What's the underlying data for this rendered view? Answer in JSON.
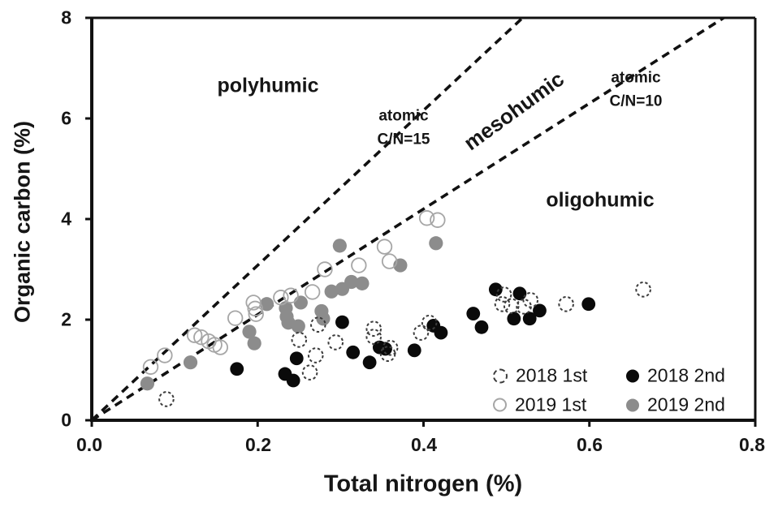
{
  "figure": {
    "background": "#ffffff",
    "text_color": "#161616"
  },
  "annotations": {
    "polyhumic": "polyhumic",
    "mesohumic": "mesohumic",
    "oligohumic": "oligohumic",
    "cn15": "atomic\nC/N=15",
    "cn10": "atomic\nC/N=10"
  },
  "legend": {
    "items": [
      {
        "label": "2018 1st",
        "marker": "open-dashed"
      },
      {
        "label": "2018 2nd",
        "marker": "filled-black"
      },
      {
        "label": "2019 1st",
        "marker": "open-gray"
      },
      {
        "label": "2019 2nd",
        "marker": "filled-gray"
      }
    ]
  },
  "chart_data": {
    "type": "scatter",
    "title": "",
    "xlabel": "Total nitrogen (%)",
    "ylabel": "Organic carbon (%)",
    "xlim": [
      0.0,
      0.8
    ],
    "ylim": [
      0,
      8
    ],
    "x_ticks": [
      0.0,
      0.2,
      0.4,
      0.6,
      0.8
    ],
    "y_ticks": [
      0,
      2,
      4,
      6,
      8
    ],
    "x_tick_labels": [
      "0.0",
      "0.2",
      "0.4",
      "0.6",
      "0.8"
    ],
    "y_tick_labels": [
      "0",
      "2",
      "4",
      "6",
      "8"
    ],
    "grid": false,
    "legend_position": "inside lower right",
    "reference_lines": [
      {
        "name": "atomic C/N=15",
        "slope": 15.4,
        "intercept": 0,
        "style": "dashed",
        "color": "#111111"
      },
      {
        "name": "atomic C/N=10",
        "slope": 10.5,
        "intercept": 0,
        "style": "dashed",
        "color": "#111111"
      }
    ],
    "series": [
      {
        "name": "2019 2nd",
        "marker": "filled-gray",
        "color": "#8c8c8c",
        "points": [
          [
            0.067,
            0.73
          ],
          [
            0.119,
            1.15
          ],
          [
            0.19,
            1.76
          ],
          [
            0.196,
            1.53
          ],
          [
            0.211,
            2.31
          ],
          [
            0.234,
            2.23
          ],
          [
            0.235,
            2.06
          ],
          [
            0.237,
            1.94
          ],
          [
            0.249,
            1.87
          ],
          [
            0.252,
            2.34
          ],
          [
            0.277,
            2.17
          ],
          [
            0.279,
            2.02
          ],
          [
            0.289,
            2.56
          ],
          [
            0.302,
            2.61
          ],
          [
            0.313,
            2.75
          ],
          [
            0.326,
            2.72
          ],
          [
            0.299,
            3.47
          ],
          [
            0.372,
            3.08
          ],
          [
            0.415,
            3.52
          ]
        ]
      },
      {
        "name": "2018 2nd",
        "marker": "filled-black",
        "color": "#0a0a0a",
        "points": [
          [
            0.175,
            1.02
          ],
          [
            0.233,
            0.92
          ],
          [
            0.243,
            0.79
          ],
          [
            0.247,
            1.23
          ],
          [
            0.302,
            1.95
          ],
          [
            0.315,
            1.35
          ],
          [
            0.335,
            1.15
          ],
          [
            0.347,
            1.45
          ],
          [
            0.354,
            1.42
          ],
          [
            0.389,
            1.39
          ],
          [
            0.412,
            1.88
          ],
          [
            0.421,
            1.74
          ],
          [
            0.46,
            2.12
          ],
          [
            0.47,
            1.85
          ],
          [
            0.487,
            2.6
          ],
          [
            0.509,
            2.02
          ],
          [
            0.516,
            2.52
          ],
          [
            0.528,
            2.02
          ],
          [
            0.54,
            2.18
          ],
          [
            0.599,
            2.31
          ]
        ]
      },
      {
        "name": "2019 1st",
        "marker": "open-gray",
        "color": "#a6a6a6",
        "points": [
          [
            0.071,
            1.06
          ],
          [
            0.088,
            1.29
          ],
          [
            0.124,
            1.69
          ],
          [
            0.132,
            1.65
          ],
          [
            0.141,
            1.57
          ],
          [
            0.148,
            1.5
          ],
          [
            0.155,
            1.45
          ],
          [
            0.173,
            2.03
          ],
          [
            0.195,
            2.34
          ],
          [
            0.197,
            2.22
          ],
          [
            0.198,
            2.11
          ],
          [
            0.228,
            2.44
          ],
          [
            0.24,
            2.48
          ],
          [
            0.266,
            2.55
          ],
          [
            0.281,
            3.0
          ],
          [
            0.322,
            3.08
          ],
          [
            0.353,
            3.45
          ],
          [
            0.359,
            3.16
          ],
          [
            0.404,
            4.02
          ],
          [
            0.417,
            3.98
          ]
        ]
      },
      {
        "name": "2018 1st",
        "marker": "open-dashed",
        "color": "#3c3c3c",
        "points": [
          [
            0.09,
            0.42
          ],
          [
            0.25,
            1.6
          ],
          [
            0.263,
            0.95
          ],
          [
            0.27,
            1.29
          ],
          [
            0.273,
            1.9
          ],
          [
            0.294,
            1.55
          ],
          [
            0.34,
            1.82
          ],
          [
            0.34,
            1.66
          ],
          [
            0.357,
            1.32
          ],
          [
            0.36,
            1.44
          ],
          [
            0.397,
            1.74
          ],
          [
            0.407,
            1.94
          ],
          [
            0.495,
            2.31
          ],
          [
            0.497,
            2.5
          ],
          [
            0.506,
            2.27
          ],
          [
            0.521,
            2.26
          ],
          [
            0.529,
            2.39
          ],
          [
            0.572,
            2.31
          ],
          [
            0.665,
            2.6
          ]
        ]
      }
    ]
  }
}
